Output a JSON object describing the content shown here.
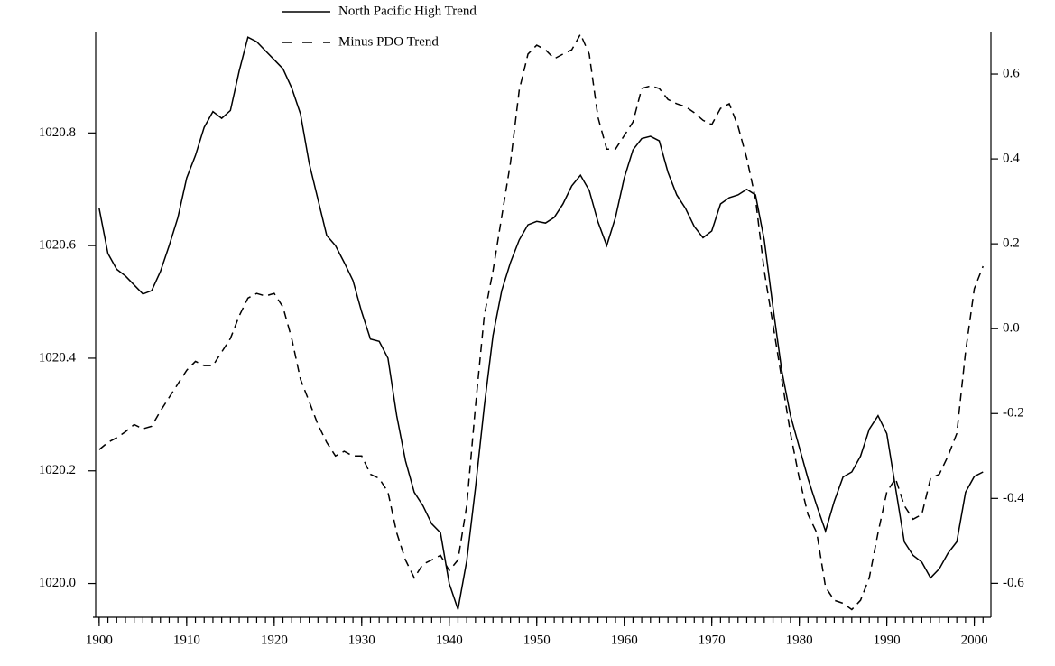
{
  "chart_data": {
    "type": "line",
    "x": [
      1900,
      1901,
      1902,
      1903,
      1904,
      1905,
      1906,
      1907,
      1908,
      1909,
      1910,
      1911,
      1912,
      1913,
      1914,
      1915,
      1916,
      1917,
      1918,
      1919,
      1920,
      1921,
      1922,
      1923,
      1924,
      1925,
      1926,
      1927,
      1928,
      1929,
      1930,
      1931,
      1932,
      1933,
      1934,
      1935,
      1936,
      1937,
      1938,
      1939,
      1940,
      1941,
      1942,
      1943,
      1944,
      1945,
      1946,
      1947,
      1948,
      1949,
      1950,
      1951,
      1952,
      1953,
      1954,
      1955,
      1956,
      1957,
      1958,
      1959,
      1960,
      1961,
      1962,
      1963,
      1964,
      1965,
      1966,
      1967,
      1968,
      1969,
      1970,
      1971,
      1972,
      1973,
      1974,
      1975,
      1976,
      1977,
      1978,
      1979,
      1980,
      1981,
      1982,
      1983,
      1984,
      1985,
      1986,
      1987,
      1988,
      1989,
      1990,
      1991,
      1992,
      1993,
      1994,
      1995,
      1996,
      1997,
      1998,
      1999,
      2000,
      2001
    ],
    "series": [
      {
        "name": "North Pacific High Trend",
        "color": "#000000",
        "line_style": "solid",
        "axis": "y",
        "values": [
          1020.666,
          1020.586,
          1020.558,
          1020.546,
          1020.53,
          1020.514,
          1020.52,
          1020.554,
          1020.6,
          1020.65,
          1020.72,
          1020.76,
          1020.81,
          1020.838,
          1020.826,
          1020.84,
          1020.91,
          1020.97,
          1020.962,
          1020.946,
          1020.93,
          1020.914,
          1020.88,
          1020.834,
          1020.746,
          1020.682,
          1020.618,
          1020.6,
          1020.57,
          1020.538,
          1020.482,
          1020.434,
          1020.43,
          1020.4,
          1020.298,
          1020.218,
          1020.162,
          1020.138,
          1020.106,
          1020.09,
          1020.0,
          1019.954,
          1020.04,
          1020.17,
          1020.314,
          1020.44,
          1020.52,
          1020.57,
          1020.61,
          1020.637,
          1020.643,
          1020.64,
          1020.65,
          1020.674,
          1020.706,
          1020.725,
          1020.698,
          1020.642,
          1020.6,
          1020.65,
          1020.72,
          1020.77,
          1020.79,
          1020.794,
          1020.786,
          1020.73,
          1020.69,
          1020.666,
          1020.634,
          1020.614,
          1020.626,
          1020.674,
          1020.685,
          1020.69,
          1020.7,
          1020.69,
          1020.61,
          1020.49,
          1020.378,
          1020.298,
          1020.242,
          1020.186,
          1020.138,
          1020.093,
          1020.146,
          1020.189,
          1020.198,
          1020.226,
          1020.274,
          1020.298,
          1020.266,
          1020.17,
          1020.074,
          1020.05,
          1020.038,
          1020.01,
          1020.026,
          1020.054,
          1020.074,
          1020.162,
          1020.19,
          1020.198
        ]
      },
      {
        "name": "Minus PDO Trend",
        "color": "#000000",
        "line_style": "dashed",
        "axis": "y2",
        "values": [
          -0.285,
          -0.268,
          -0.257,
          -0.243,
          -0.226,
          -0.236,
          -0.23,
          -0.194,
          -0.162,
          -0.13,
          -0.098,
          -0.077,
          -0.087,
          -0.087,
          -0.055,
          -0.023,
          0.03,
          0.072,
          0.083,
          0.077,
          0.083,
          0.051,
          -0.023,
          -0.119,
          -0.172,
          -0.226,
          -0.268,
          -0.3,
          -0.289,
          -0.3,
          -0.3,
          -0.343,
          -0.353,
          -0.385,
          -0.481,
          -0.545,
          -0.587,
          -0.555,
          -0.545,
          -0.534,
          -0.57,
          -0.545,
          -0.417,
          -0.183,
          0.03,
          0.136,
          0.264,
          0.391,
          0.562,
          0.647,
          0.668,
          0.657,
          0.636,
          0.647,
          0.657,
          0.694,
          0.647,
          0.498,
          0.423,
          0.423,
          0.455,
          0.487,
          0.566,
          0.572,
          0.566,
          0.54,
          0.53,
          0.523,
          0.509,
          0.491,
          0.481,
          0.519,
          0.53,
          0.477,
          0.402,
          0.306,
          0.136,
          0.009,
          -0.119,
          -0.247,
          -0.353,
          -0.438,
          -0.481,
          -0.609,
          -0.64,
          -0.647,
          -0.662,
          -0.64,
          -0.587,
          -0.481,
          -0.385,
          -0.353,
          -0.417,
          -0.449,
          -0.438,
          -0.353,
          -0.343,
          -0.3,
          -0.247,
          -0.055,
          0.094,
          0.147
        ]
      }
    ],
    "xlim": [
      1899.6,
      2001.9
    ],
    "xticks": [
      1900,
      1910,
      1920,
      1930,
      1940,
      1950,
      1960,
      1970,
      1980,
      1990,
      2000
    ],
    "ylim": [
      1019.94,
      1020.98
    ],
    "yticks": [
      {
        "value": 1020.0,
        "label": "1020.0"
      },
      1020.2,
      1020.4,
      1020.6,
      1020.8
    ],
    "y2lim": [
      -0.68,
      0.7
    ],
    "y2ticks": [
      -0.6,
      -0.4,
      -0.2,
      {
        "value": 0.0,
        "label": "0.0"
      },
      0.2,
      0.4,
      0.6
    ],
    "grid": false,
    "legend": "top-left"
  }
}
